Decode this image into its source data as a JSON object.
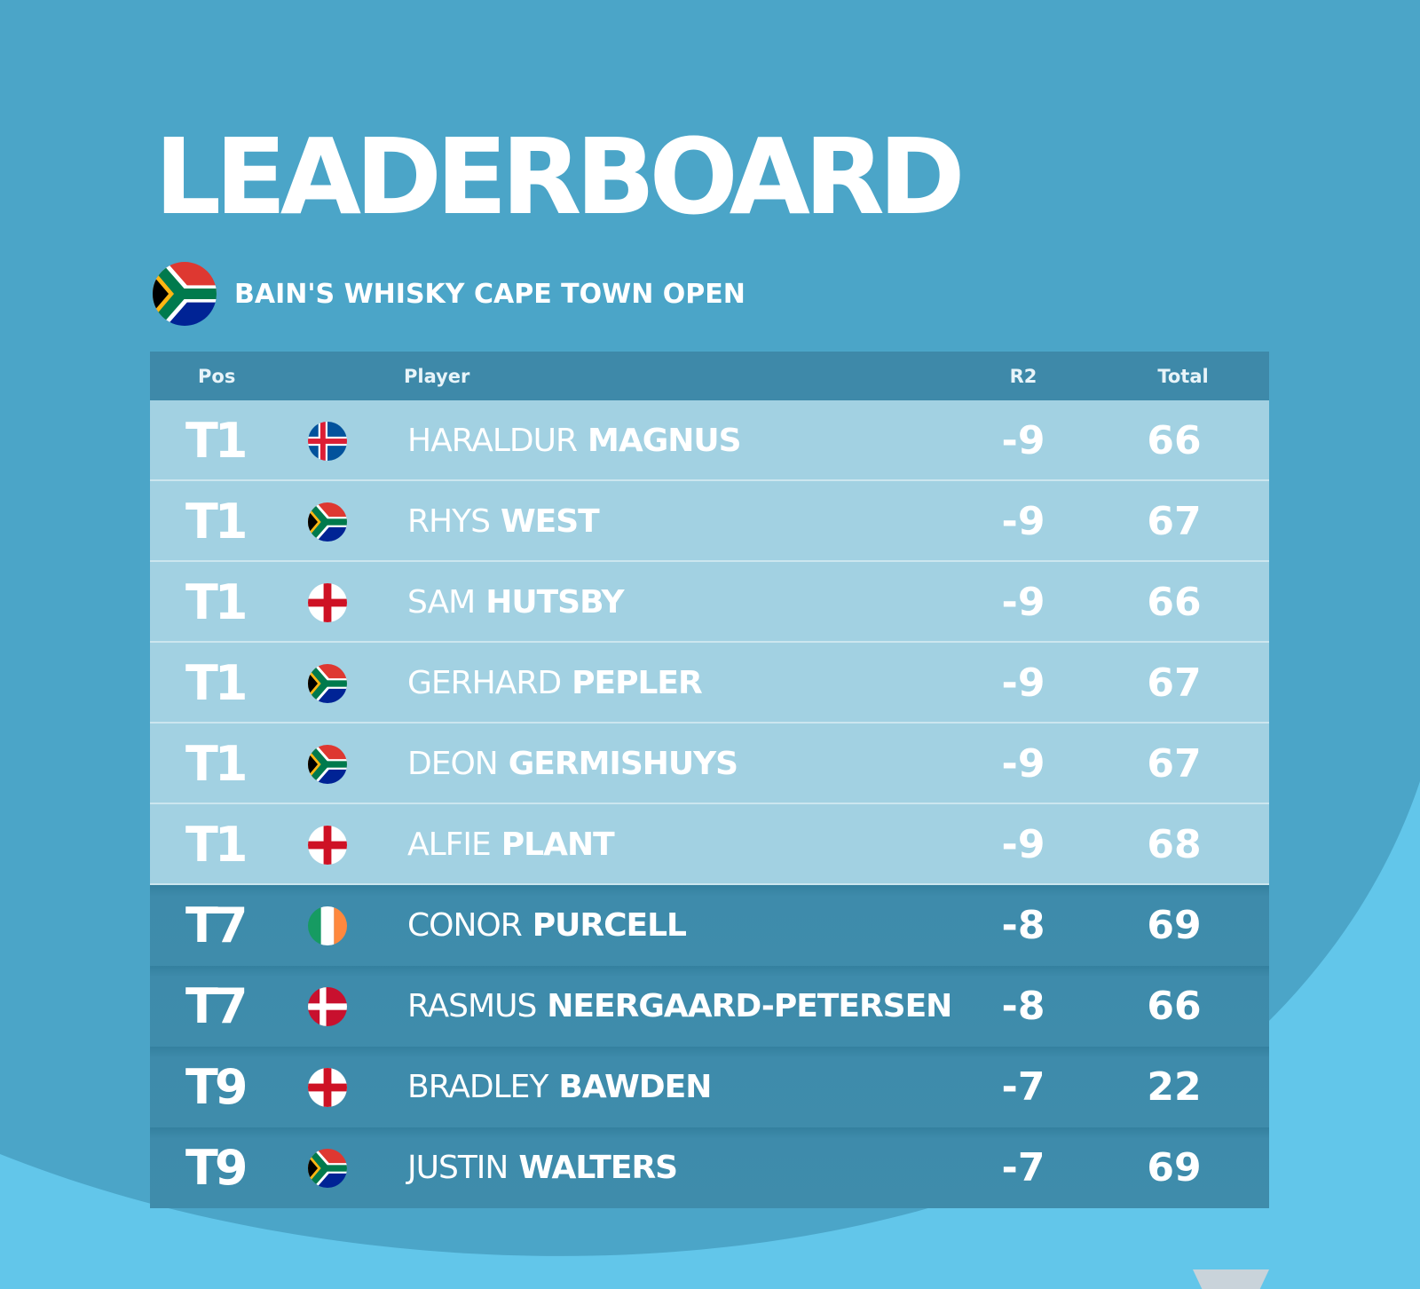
{
  "title": "LEADERBOARD",
  "event": {
    "name": "BAIN'S WHISKY CAPE TOWN OPEN",
    "flag_icon": "south-africa-flag-icon"
  },
  "columns": {
    "pos": "Pos",
    "player": "Player",
    "r2": "R2",
    "total": "Total"
  },
  "rows": [
    {
      "pos": "T1",
      "country": "iceland",
      "first": "HARALDUR",
      "last": "MAGNUS",
      "r2": "-9",
      "total": "66",
      "style": "light"
    },
    {
      "pos": "T1",
      "country": "south-africa",
      "first": "RHYS",
      "last": "WEST",
      "r2": "-9",
      "total": "67",
      "style": "light"
    },
    {
      "pos": "T1",
      "country": "england",
      "first": "SAM",
      "last": "HUTSBY",
      "r2": "-9",
      "total": "66",
      "style": "light"
    },
    {
      "pos": "T1",
      "country": "south-africa",
      "first": "GERHARD",
      "last": "PEPLER",
      "r2": "-9",
      "total": "67",
      "style": "light"
    },
    {
      "pos": "T1",
      "country": "south-africa",
      "first": "DEON",
      "last": "GERMISHUYS",
      "r2": "-9",
      "total": "67",
      "style": "light"
    },
    {
      "pos": "T1",
      "country": "england",
      "first": "ALFIE",
      "last": "PLANT",
      "r2": "-9",
      "total": "68",
      "style": "light"
    },
    {
      "pos": "T7",
      "country": "ireland",
      "first": "CONOR",
      "last": "PURCELL",
      "r2": "-8",
      "total": "69",
      "style": "dark"
    },
    {
      "pos": "T7",
      "country": "denmark",
      "first": "RASMUS",
      "last": "NEERGAARD-PETERSEN",
      "r2": "-8",
      "total": "66",
      "style": "dark"
    },
    {
      "pos": "T9",
      "country": "england",
      "first": "BRADLEY",
      "last": "BAWDEN",
      "r2": "-7",
      "total": "22",
      "style": "dark"
    },
    {
      "pos": "T9",
      "country": "south-africa",
      "first": "JUSTIN",
      "last": "WALTERS",
      "r2": "-7",
      "total": "69",
      "style": "dark"
    }
  ],
  "colors": {
    "background": "#4ba5c8",
    "accent_curve": "#62c6ea",
    "header_bar": "#3e89a9",
    "row_light": "#a2d1e2",
    "row_dark": "#3f8cab",
    "text": "#ffffff"
  }
}
